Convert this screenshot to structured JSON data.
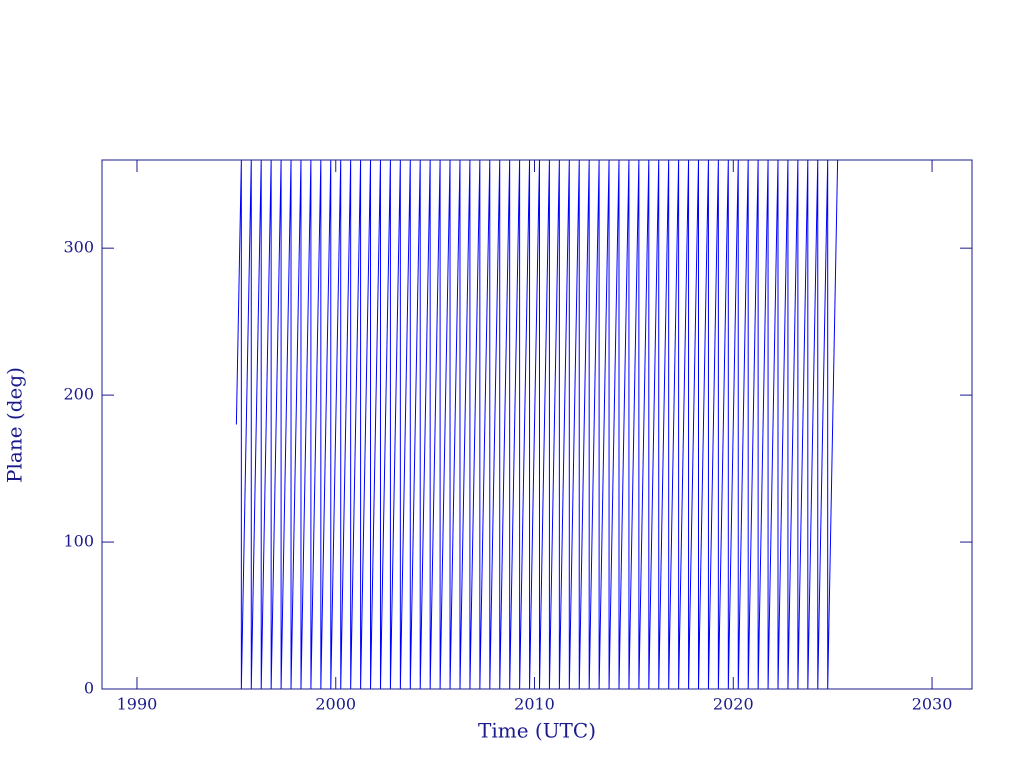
{
  "chart_data": {
    "type": "line",
    "x_label": "Time (UTC)",
    "y_label": "Plane (deg)",
    "xlim": [
      1988.24,
      2032.01
    ],
    "ylim": [
      0,
      360
    ],
    "xticks": [
      1990,
      2000,
      2010,
      2020,
      2030
    ],
    "yticks": [
      0,
      100,
      200,
      300
    ],
    "axis_color": "#1a1a8c",
    "series": [
      {
        "color": "#0000ff",
        "x": [
          1995.0,
          1995.25,
          1995.25,
          1995.75,
          1995.75,
          1996.25,
          1996.25,
          1996.75,
          1996.75,
          1997.25,
          1997.25,
          1997.75,
          1997.75,
          1998.25,
          1998.25,
          1998.75,
          1998.75,
          1999.25,
          1999.25,
          1999.75,
          1999.75,
          2000.25,
          2000.25,
          2000.75,
          2000.75,
          2001.25,
          2001.25,
          2001.75,
          2001.75,
          2002.25,
          2002.25,
          2002.75,
          2002.75,
          2003.25,
          2003.25,
          2003.75,
          2003.75,
          2004.25,
          2004.25,
          2004.75,
          2004.75,
          2005.25,
          2005.25,
          2005.75,
          2005.75,
          2006.25,
          2006.25,
          2006.75,
          2006.75,
          2007.25,
          2007.25,
          2007.75,
          2007.75,
          2008.25,
          2008.25,
          2008.75,
          2008.75,
          2009.25,
          2009.25,
          2009.75,
          2009.75,
          2010.25,
          2010.25,
          2010.75,
          2010.75,
          2011.25,
          2011.25,
          2011.75,
          2011.75,
          2012.25,
          2012.25,
          2012.75,
          2012.75,
          2013.25,
          2013.25,
          2013.75,
          2013.75,
          2014.25,
          2014.25,
          2014.75,
          2014.75,
          2015.25,
          2015.25,
          2015.75,
          2015.75,
          2016.25,
          2016.25,
          2016.75,
          2016.75,
          2017.25,
          2017.25,
          2017.75,
          2017.75,
          2018.25,
          2018.25,
          2018.75,
          2018.75,
          2019.25,
          2019.25,
          2019.75,
          2019.75,
          2020.25,
          2020.25,
          2020.75,
          2020.75,
          2021.25,
          2021.25,
          2021.75,
          2021.75,
          2022.25,
          2022.25,
          2022.75,
          2022.75,
          2023.25,
          2023.25,
          2023.75,
          2023.75,
          2024.25,
          2024.25,
          2024.75,
          2024.75,
          2025.25
        ],
        "values": [
          180,
          360,
          0,
          360,
          0,
          360,
          0,
          360,
          0,
          360,
          0,
          360,
          0,
          360,
          0,
          360,
          0,
          360,
          0,
          360,
          0,
          360,
          0,
          360,
          0,
          360,
          0,
          360,
          0,
          360,
          0,
          360,
          0,
          360,
          0,
          360,
          0,
          360,
          0,
          360,
          0,
          360,
          0,
          360,
          0,
          360,
          0,
          360,
          0,
          360,
          0,
          360,
          0,
          360,
          0,
          360,
          0,
          360,
          0,
          360,
          0,
          360,
          0,
          360,
          0,
          360,
          0,
          360,
          0,
          360,
          0,
          360,
          0,
          360,
          0,
          360,
          0,
          360,
          0,
          360,
          0,
          360,
          0,
          360,
          0,
          360,
          0,
          360,
          0,
          360,
          0,
          360,
          0,
          360,
          0,
          360,
          0,
          360,
          0,
          360,
          0,
          360,
          0,
          360,
          0,
          360,
          0,
          360,
          0,
          360,
          0,
          360,
          0,
          360,
          0,
          360,
          0,
          360,
          0,
          360,
          0,
          360
        ]
      }
    ]
  }
}
